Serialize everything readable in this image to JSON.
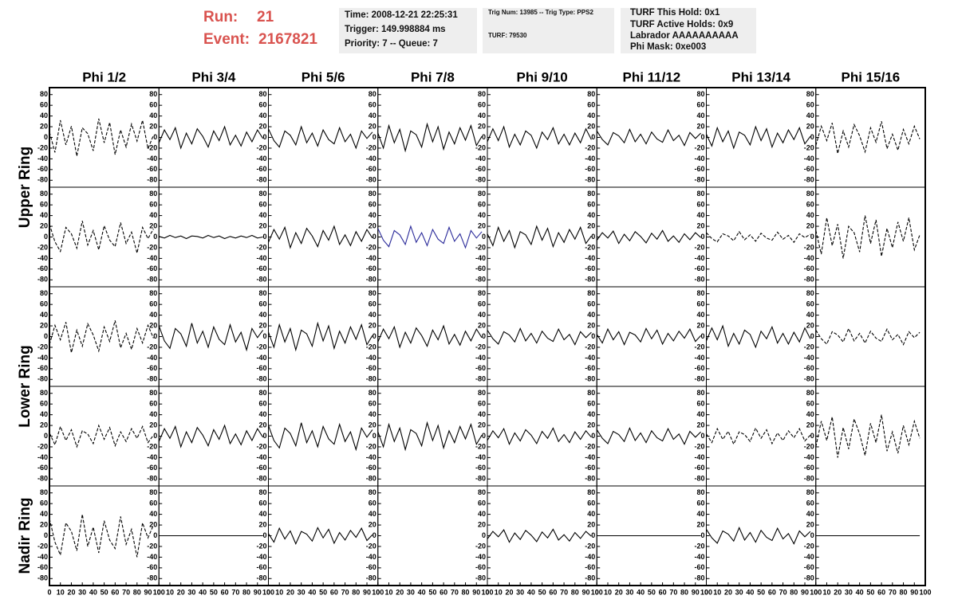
{
  "header": {
    "run_label": "Run:",
    "run": 21,
    "event_label": "Event:",
    "event": 2167821
  },
  "info": [
    [
      "Time: 2008-12-21 22:25:31",
      "Trigger: 149.998884 ms",
      "Priority: 7 -- Queue: 7"
    ],
    [
      "Trig Num: 13985 -- Trig Type: PPS2",
      "TURF: 79530"
    ],
    [
      "TURF This Hold: 0x1",
      "TURF Active Holds: 0x9",
      "Labrador AAAAAAAAAA",
      "Phi Mask: 0xe003"
    ]
  ],
  "columns": [
    "Phi 1/2",
    "Phi 3/4",
    "Phi 5/6",
    "Phi 7/8",
    "Phi 9/10",
    "Phi 11/12",
    "Phi 13/14",
    "Phi 15/16"
  ],
  "ring_labels": [
    "Upper Ring",
    "Lower Ring",
    "Nadir Ring"
  ],
  "ylim": [
    -90,
    90
  ],
  "yticks": [
    80,
    60,
    40,
    20,
    0,
    -20,
    -40,
    -60,
    -80
  ],
  "xlim": [
    0,
    100
  ],
  "xticks": [
    0,
    10,
    20,
    30,
    40,
    50,
    60,
    70,
    80,
    90,
    100
  ],
  "sample_x": [
    0,
    5,
    10,
    15,
    20,
    25,
    30,
    35,
    40,
    45,
    50,
    55,
    60,
    65,
    70,
    75,
    80,
    85,
    90,
    95
  ],
  "line_color": "#000000",
  "panels": [
    [
      {
        "dashed": true,
        "values": [
          10,
          -28,
          32,
          -14,
          21,
          -35,
          18,
          7,
          -25,
          35,
          -10,
          28,
          -32,
          14,
          -18,
          25,
          -7,
          32,
          -21,
          4
        ]
      },
      {
        "dashed": false,
        "values": [
          -10,
          14,
          -4,
          18,
          -20,
          8,
          -12,
          16,
          2,
          -18,
          12,
          -6,
          20,
          -14,
          4,
          -16,
          10,
          -8,
          14,
          -2
        ]
      },
      {
        "dashed": false,
        "values": [
          16,
          -6,
          -18,
          12,
          4,
          -14,
          20,
          -10,
          8,
          -16,
          14,
          -4,
          -12,
          18,
          -8,
          6,
          -20,
          12,
          -2,
          10
        ]
      },
      {
        "dashed": false,
        "values": [
          8,
          -20,
          22,
          -10,
          15,
          -25,
          12,
          5,
          -18,
          25,
          -8,
          20,
          -22,
          10,
          -12,
          18,
          -5,
          22,
          -15,
          2
        ]
      },
      {
        "dashed": false,
        "values": [
          -8,
          16,
          -6,
          20,
          -18,
          6,
          -14,
          12,
          4,
          -20,
          10,
          -4,
          18,
          -12,
          6,
          -14,
          8,
          -10,
          16,
          -4
        ]
      },
      {
        "dashed": false,
        "values": [
          12,
          -4,
          -14,
          9,
          3,
          -10,
          15,
          -8,
          6,
          -12,
          10,
          -3,
          -9,
          14,
          -6,
          4,
          -15,
          9,
          -2,
          8
        ]
      },
      {
        "dashed": false,
        "values": [
          6,
          -16,
          18,
          -8,
          12,
          -20,
          10,
          4,
          -14,
          20,
          -6,
          16,
          -18,
          8,
          -10,
          14,
          -4,
          18,
          -12,
          2
        ]
      },
      {
        "dashed": true,
        "values": [
          -15,
          21,
          -6,
          27,
          -30,
          12,
          -18,
          24,
          3,
          -27,
          18,
          -9,
          30,
          -21,
          6,
          -24,
          15,
          -12,
          21,
          -3
        ]
      }
    ],
    [
      {
        "dashed": true,
        "values": [
          24,
          -9,
          -27,
          18,
          6,
          -21,
          30,
          -15,
          12,
          -24,
          21,
          -6,
          -18,
          27,
          -12,
          9,
          -30,
          18,
          -3,
          15
        ]
      },
      {
        "dashed": false,
        "values": [
          1,
          -2,
          3,
          -1,
          2,
          -3,
          2,
          1,
          -2,
          3,
          -1,
          2,
          -3,
          1,
          -2,
          2,
          -1,
          3,
          -2,
          0
        ]
      },
      {
        "dashed": false,
        "values": [
          -10,
          14,
          -4,
          18,
          -20,
          8,
          -12,
          16,
          2,
          -18,
          12,
          -6,
          20,
          -14,
          4,
          -16,
          10,
          -8,
          14,
          -2
        ]
      },
      {
        "dashed": false,
        "color": "#2b2b9a",
        "values": [
          16,
          -6,
          -18,
          12,
          4,
          -14,
          20,
          -10,
          8,
          -16,
          14,
          -4,
          -12,
          18,
          -8,
          6,
          -20,
          12,
          -2,
          10
        ]
      },
      {
        "dashed": false,
        "values": [
          6,
          -16,
          18,
          -8,
          12,
          -20,
          10,
          4,
          -14,
          20,
          -6,
          16,
          -18,
          8,
          -10,
          14,
          -4,
          18,
          -12,
          2
        ]
      },
      {
        "dashed": false,
        "values": [
          -6,
          8,
          -2,
          11,
          -12,
          5,
          -7,
          10,
          1,
          -11,
          7,
          -4,
          12,
          -8,
          2,
          -10,
          6,
          -5,
          8,
          -1
        ]
      },
      {
        "dashed": true,
        "values": [
          8,
          -3,
          -9,
          6,
          2,
          -7,
          10,
          -5,
          4,
          -8,
          7,
          -2,
          -6,
          9,
          -4,
          3,
          -10,
          6,
          -1,
          5
        ]
      },
      {
        "dashed": true,
        "values": [
          12,
          -32,
          36,
          -16,
          24,
          -40,
          20,
          8,
          -28,
          40,
          -12,
          32,
          -36,
          16,
          -20,
          28,
          -8,
          36,
          -24,
          4
        ]
      }
    ],
    [
      {
        "dashed": true,
        "values": [
          -15,
          21,
          -6,
          27,
          -30,
          12,
          -18,
          24,
          3,
          -27,
          18,
          -9,
          30,
          -21,
          6,
          -24,
          15,
          -12,
          21,
          -3
        ]
      },
      {
        "dashed": false,
        "values": [
          20,
          -8,
          -22,
          15,
          5,
          -18,
          25,
          -12,
          10,
          -20,
          18,
          -5,
          -15,
          22,
          -10,
          8,
          -25,
          15,
          -2,
          12
        ]
      },
      {
        "dashed": false,
        "values": [
          8,
          -20,
          22,
          -10,
          15,
          -25,
          12,
          5,
          -18,
          25,
          -8,
          20,
          -22,
          10,
          -12,
          18,
          -5,
          22,
          -15,
          2
        ]
      },
      {
        "dashed": false,
        "values": [
          -10,
          14,
          -4,
          18,
          -20,
          8,
          -12,
          16,
          2,
          -18,
          12,
          -6,
          20,
          -14,
          4,
          -16,
          10,
          -8,
          14,
          -2
        ]
      },
      {
        "dashed": false,
        "values": [
          12,
          -4,
          -14,
          9,
          3,
          -10,
          15,
          -8,
          6,
          -12,
          10,
          -3,
          -9,
          14,
          -6,
          4,
          -15,
          9,
          -2,
          8
        ]
      },
      {
        "dashed": false,
        "values": [
          4,
          -12,
          14,
          -6,
          9,
          -15,
          8,
          3,
          -10,
          15,
          -4,
          12,
          -14,
          6,
          -8,
          10,
          -3,
          14,
          -9,
          2
        ]
      },
      {
        "dashed": false,
        "values": [
          -8,
          16,
          -6,
          20,
          -18,
          6,
          -14,
          12,
          4,
          -20,
          10,
          -4,
          18,
          -12,
          6,
          -14,
          8,
          -10,
          16,
          -4
        ]
      },
      {
        "dashed": true,
        "values": [
          12,
          -4,
          -14,
          9,
          3,
          -10,
          15,
          -8,
          6,
          -12,
          10,
          -3,
          -9,
          14,
          -6,
          4,
          -15,
          9,
          -2,
          8
        ]
      }
    ],
    [
      {
        "dashed": true,
        "values": [
          6,
          -16,
          18,
          -8,
          12,
          -20,
          10,
          4,
          -14,
          20,
          -6,
          16,
          -18,
          8,
          -10,
          14,
          -4,
          18,
          -12,
          2
        ]
      },
      {
        "dashed": false,
        "values": [
          -10,
          14,
          -4,
          18,
          -20,
          8,
          -12,
          16,
          2,
          -18,
          12,
          -6,
          20,
          -14,
          4,
          -16,
          10,
          -8,
          14,
          -2
        ]
      },
      {
        "dashed": false,
        "values": [
          20,
          -8,
          -22,
          15,
          5,
          -18,
          25,
          -12,
          10,
          -20,
          18,
          -5,
          -15,
          22,
          -10,
          8,
          -25,
          15,
          -2,
          12
        ]
      },
      {
        "dashed": false,
        "values": [
          8,
          -20,
          22,
          -10,
          15,
          -25,
          12,
          5,
          -18,
          25,
          -8,
          20,
          -22,
          10,
          -12,
          18,
          -5,
          22,
          -15,
          2
        ]
      },
      {
        "dashed": false,
        "values": [
          -8,
          10,
          -3,
          14,
          -15,
          6,
          -9,
          12,
          2,
          -14,
          9,
          -4,
          15,
          -10,
          3,
          -12,
          8,
          -6,
          10,
          -2
        ]
      },
      {
        "dashed": false,
        "values": [
          12,
          -4,
          -14,
          9,
          3,
          -10,
          15,
          -8,
          6,
          -12,
          10,
          -3,
          -9,
          14,
          -6,
          4,
          -15,
          9,
          -2,
          8
        ]
      },
      {
        "dashed": true,
        "values": [
          4,
          -12,
          14,
          -6,
          9,
          -15,
          8,
          3,
          -10,
          15,
          -4,
          12,
          -14,
          6,
          -8,
          10,
          -3,
          14,
          -9,
          2
        ]
      },
      {
        "dashed": true,
        "values": [
          -20,
          28,
          -8,
          36,
          -40,
          16,
          -24,
          32,
          4,
          -36,
          24,
          -12,
          40,
          -28,
          8,
          -32,
          20,
          -16,
          28,
          -4
        ]
      }
    ],
    [
      {
        "dashed": true,
        "values": [
          32,
          -12,
          -36,
          24,
          8,
          -28,
          40,
          -20,
          16,
          -32,
          28,
          -8,
          -24,
          36,
          -16,
          12,
          -40,
          24,
          -4,
          20
        ]
      },
      {
        "dashed": false,
        "values": [
          0,
          0,
          0,
          0,
          0,
          0,
          0,
          0,
          0,
          0,
          0,
          0,
          0,
          0,
          0,
          0,
          0,
          0,
          0,
          0
        ]
      },
      {
        "dashed": false,
        "values": [
          4,
          -12,
          14,
          -6,
          9,
          -15,
          8,
          3,
          -10,
          15,
          -4,
          12,
          -14,
          6,
          -8,
          10,
          -3,
          14,
          -9,
          2
        ]
      },
      {
        "dashed": false,
        "values": []
      },
      {
        "dashed": false,
        "values": [
          -6,
          8,
          -2,
          11,
          -12,
          5,
          -7,
          10,
          1,
          -11,
          7,
          -4,
          12,
          -8,
          2,
          -10,
          6,
          -5,
          8,
          -1
        ]
      },
      {
        "dashed": false,
        "values": [
          0,
          0,
          0,
          0,
          0,
          0,
          0,
          0,
          0,
          0,
          0,
          0,
          0,
          0,
          0,
          0,
          0,
          0,
          0,
          0
        ]
      },
      {
        "dashed": false,
        "values": [
          12,
          -4,
          -14,
          9,
          3,
          -10,
          15,
          -8,
          6,
          -12,
          10,
          -3,
          -9,
          14,
          -6,
          4,
          -15,
          9,
          -2,
          8
        ]
      },
      {
        "dashed": false,
        "values": [
          0,
          0,
          0,
          0,
          0,
          0,
          0,
          0,
          0,
          0,
          0,
          0,
          0,
          0,
          0,
          0,
          0,
          0,
          0,
          0
        ]
      }
    ]
  ]
}
